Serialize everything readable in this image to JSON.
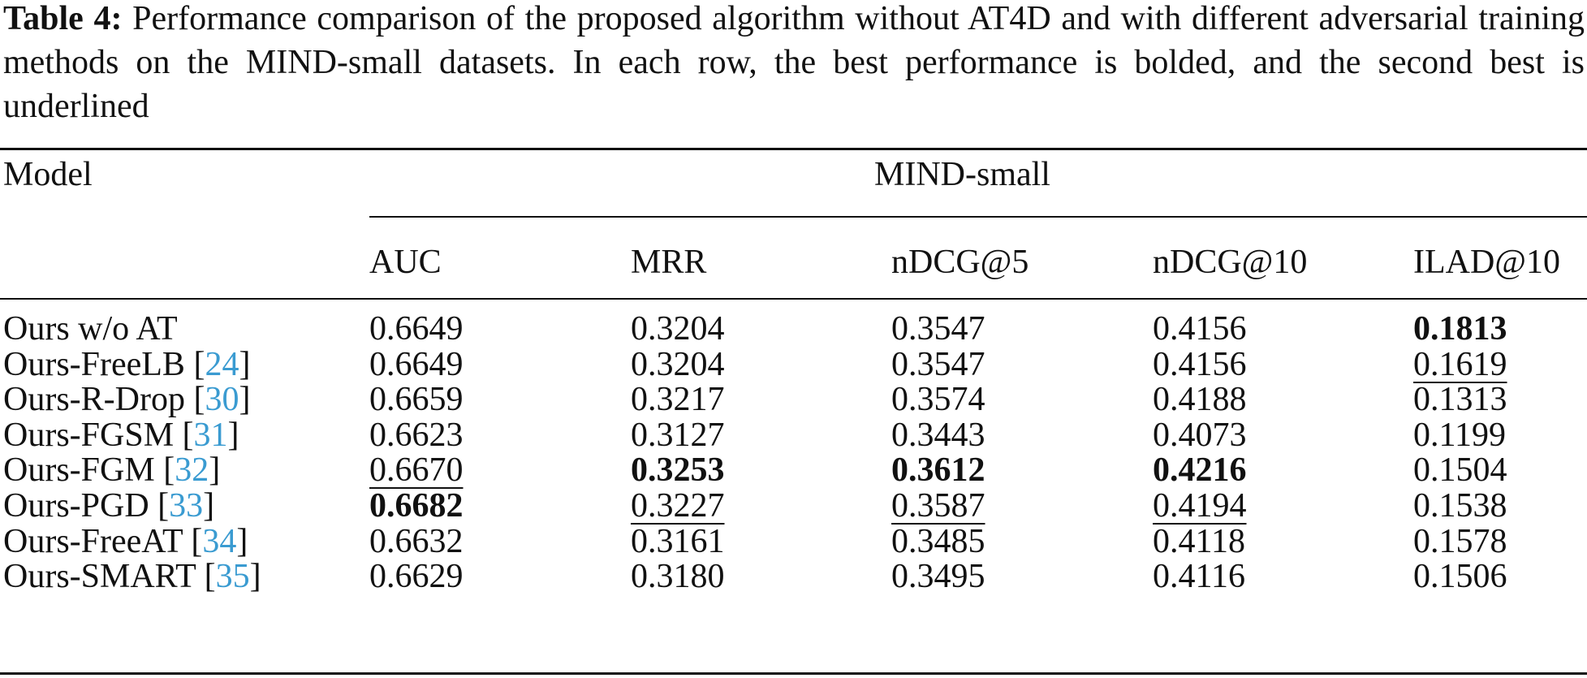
{
  "caption": {
    "label": "Table 4:",
    "text": " Performance comparison of the proposed algorithm without AT4D and with different adversarial training methods on the MIND-small datasets. In each row, the best performance is bolded, and the second best is underlined"
  },
  "header": {
    "model_label": "Model",
    "group_label": "MIND-small",
    "columns": [
      "AUC",
      "MRR",
      "nDCG@5",
      "nDCG@10",
      "ILAD@10"
    ]
  },
  "rows": [
    {
      "name": "Ours w/o AT",
      "ref": "",
      "values": [
        "0.6649",
        "0.3204",
        "0.3547",
        "0.4156",
        "0.1813"
      ]
    },
    {
      "name": "Ours-FreeLB ",
      "ref": "24",
      "values": [
        "0.6649",
        "0.3204",
        "0.3547",
        "0.4156",
        "0.1619"
      ]
    },
    {
      "name": "Ours-R-Drop ",
      "ref": "30",
      "values": [
        "0.6659",
        "0.3217",
        "0.3574",
        "0.4188",
        "0.1313"
      ]
    },
    {
      "name": "Ours-FGSM ",
      "ref": "31",
      "values": [
        "0.6623",
        "0.3127",
        "0.3443",
        "0.4073",
        "0.1199"
      ]
    },
    {
      "name": "Ours-FGM ",
      "ref": "32",
      "values": [
        "0.6670",
        "0.3253",
        "0.3612",
        "0.4216",
        "0.1504"
      ]
    },
    {
      "name": "Ours-PGD ",
      "ref": "33",
      "values": [
        "0.6682",
        "0.3227",
        "0.3587",
        "0.4194",
        "0.1538"
      ]
    },
    {
      "name": "Ours-FreeAT ",
      "ref": "34",
      "values": [
        "0.6632",
        "0.3161",
        "0.3485",
        "0.4118",
        "0.1578"
      ]
    },
    {
      "name": "Ours-SMART ",
      "ref": "35",
      "values": [
        "0.6629",
        "0.3180",
        "0.3495",
        "0.4116",
        "0.1506"
      ]
    }
  ],
  "colors": {
    "reference_link": "#3a9bd1",
    "text": "#111111"
  }
}
